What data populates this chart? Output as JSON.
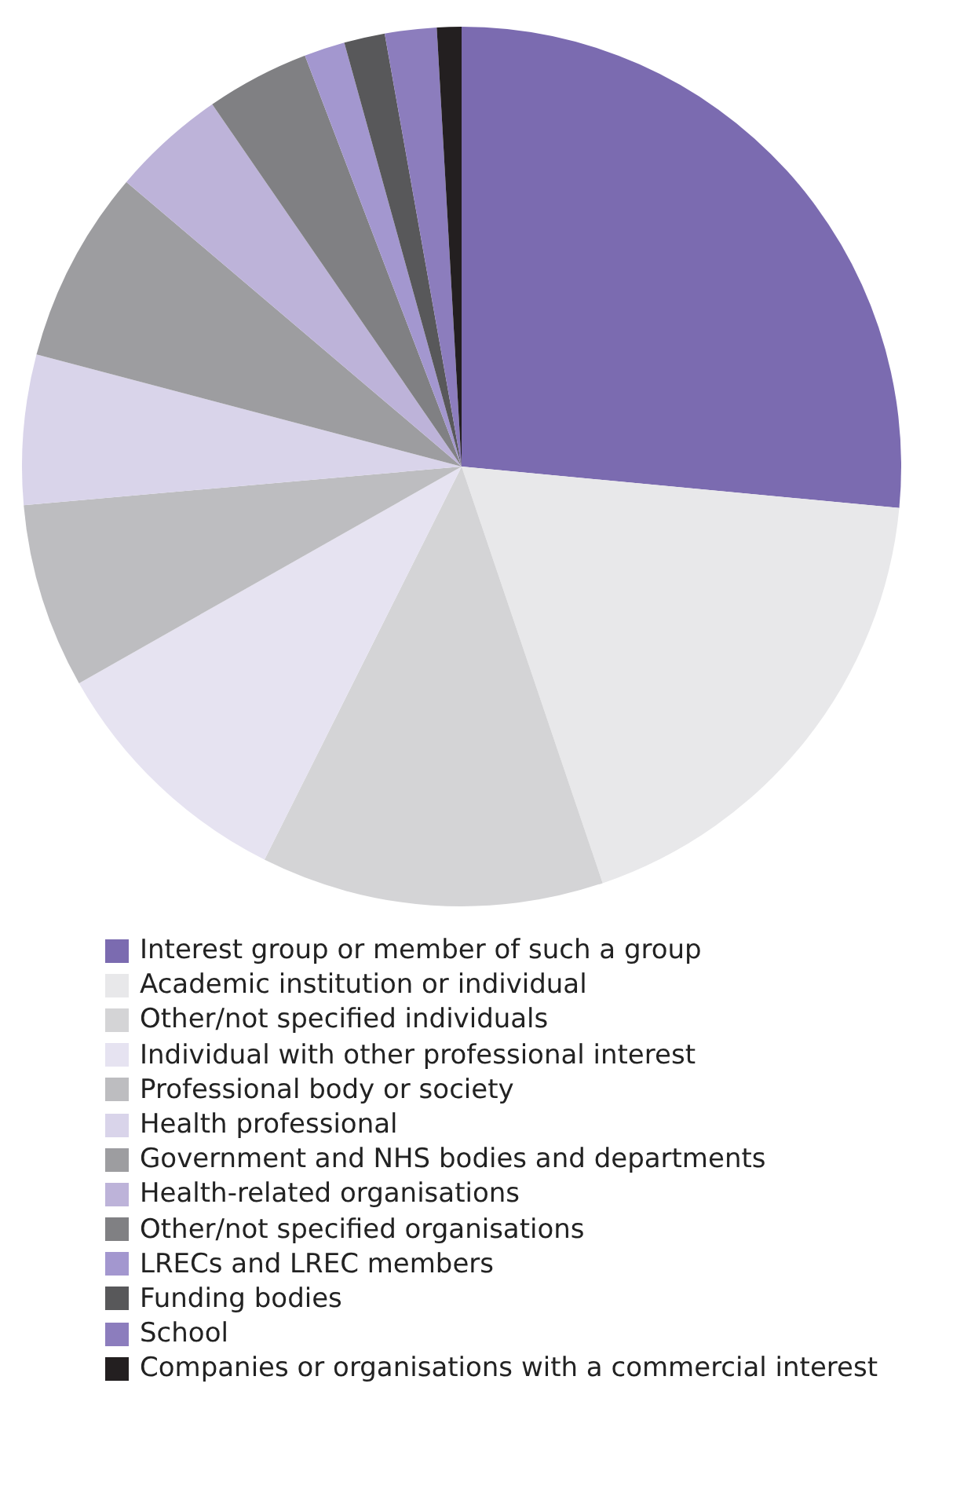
{
  "chart_data": {
    "type": "pie",
    "categories": [
      "Interest group or member of such a group",
      "Academic institution or individual",
      "Other/not specified individuals",
      "Individual with other professional interest",
      "Professional body or society",
      "Health professional",
      "Government and NHS bodies and departments",
      "Health-related organisations",
      "Other/not specified organisations",
      "LRECs and LREC members",
      "Funding bodies",
      "School",
      "Companies or organisations with a commercial interest"
    ],
    "values": [
      26.5,
      18.3,
      12.6,
      9.4,
      6.8,
      5.5,
      7.1,
      4.2,
      3.8,
      1.5,
      1.5,
      1.9,
      0.9
    ],
    "colors": [
      "#7b6bb0",
      "#e8e8ea",
      "#d4d4d6",
      "#e6e3f1",
      "#bdbdc0",
      "#d9d4ea",
      "#9d9da0",
      "#bdb3d9",
      "#808083",
      "#a397cf",
      "#58585a",
      "#8c7dbd",
      "#231f20"
    ],
    "legend": "bottom"
  }
}
